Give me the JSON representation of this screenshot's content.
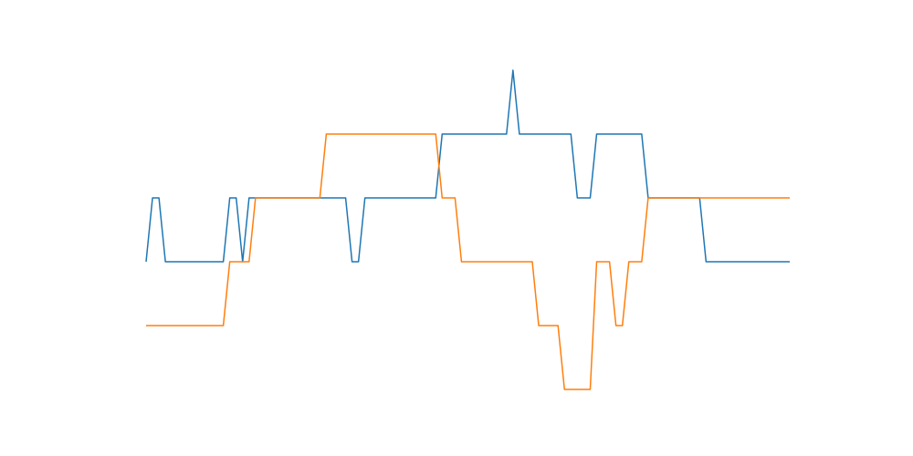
{
  "chart_data": {
    "type": "line",
    "title": "",
    "xlabel": "",
    "ylabel": "",
    "grid": false,
    "axes_visible": false,
    "xlim": [
      0,
      100
    ],
    "ylim": [
      -4.5,
      3.5
    ],
    "series": [
      {
        "color": "#1f77b4",
        "x": [
          0,
          1,
          2,
          3,
          4,
          5,
          6,
          7,
          8,
          9,
          10,
          11,
          12,
          13,
          14,
          15,
          16,
          17,
          18,
          19,
          20,
          21,
          22,
          23,
          24,
          25,
          26,
          27,
          28,
          29,
          30,
          31,
          32,
          33,
          34,
          35,
          36,
          37,
          38,
          39,
          40,
          41,
          42,
          43,
          44,
          45,
          46,
          47,
          48,
          49,
          50,
          51,
          52,
          53,
          54,
          55,
          56,
          57,
          58,
          59,
          60,
          61,
          62,
          63,
          64,
          65,
          66,
          67,
          68,
          69,
          70,
          71,
          72,
          73,
          74,
          75,
          76,
          77,
          78,
          79,
          80,
          81,
          82,
          83,
          84,
          85,
          86,
          87,
          88,
          89,
          90,
          91,
          92,
          93,
          94,
          95,
          96,
          97,
          98,
          99,
          100
        ],
        "y": [
          -1,
          0,
          0,
          -1,
          -1,
          -1,
          -1,
          -1,
          -1,
          -1,
          -1,
          -1,
          -1,
          0,
          0,
          -1,
          0,
          0,
          0,
          0,
          0,
          0,
          0,
          0,
          0,
          0,
          0,
          0,
          0,
          0,
          0,
          0,
          -1,
          -1,
          0,
          0,
          0,
          0,
          0,
          0,
          0,
          0,
          0,
          0,
          0,
          0,
          1,
          1,
          1,
          1,
          1,
          1,
          1,
          1,
          1,
          1,
          1,
          2,
          1,
          1,
          1,
          1,
          1,
          1,
          1,
          1,
          1,
          0,
          0,
          0,
          1,
          1,
          1,
          1,
          1,
          1,
          1,
          1,
          0,
          0,
          0,
          0,
          0,
          0,
          0,
          0,
          0,
          -1,
          -1,
          -1,
          -1,
          -1,
          -1,
          -1,
          -1,
          -1,
          -1,
          -1,
          -1,
          -1,
          -1
        ]
      },
      {
        "color": "#ff7f0e",
        "x": [
          0,
          1,
          2,
          3,
          4,
          5,
          6,
          7,
          8,
          9,
          10,
          11,
          12,
          13,
          14,
          15,
          16,
          17,
          18,
          19,
          20,
          21,
          22,
          23,
          24,
          25,
          26,
          27,
          28,
          29,
          30,
          31,
          32,
          33,
          34,
          35,
          36,
          37,
          38,
          39,
          40,
          41,
          42,
          43,
          44,
          45,
          46,
          47,
          48,
          49,
          50,
          51,
          52,
          53,
          54,
          55,
          56,
          57,
          58,
          59,
          60,
          61,
          62,
          63,
          64,
          65,
          66,
          67,
          68,
          69,
          70,
          71,
          72,
          73,
          74,
          75,
          76,
          77,
          78,
          79,
          80,
          81,
          82,
          83,
          84,
          85,
          86,
          87,
          88,
          89,
          90,
          91,
          92,
          93,
          94,
          95,
          96,
          97,
          98,
          99,
          100
        ],
        "y": [
          -2,
          -2,
          -2,
          -2,
          -2,
          -2,
          -2,
          -2,
          -2,
          -2,
          -2,
          -2,
          -2,
          -1,
          -1,
          -1,
          -1,
          0,
          0,
          0,
          0,
          0,
          0,
          0,
          0,
          0,
          0,
          0,
          1,
          1,
          1,
          1,
          1,
          1,
          1,
          1,
          1,
          1,
          1,
          1,
          1,
          1,
          1,
          1,
          1,
          1,
          0,
          0,
          0,
          -1,
          -1,
          -1,
          -1,
          -1,
          -1,
          -1,
          -1,
          -1,
          -1,
          -1,
          -1,
          -2,
          -2,
          -2,
          -2,
          -3,
          -3,
          -3,
          -3,
          -3,
          -1,
          -1,
          -1,
          -2,
          -2,
          -1,
          -1,
          -1,
          0,
          0,
          0,
          0,
          0,
          0,
          0,
          0,
          0,
          0,
          0,
          0,
          0,
          0,
          0,
          0,
          0,
          0,
          0,
          0,
          0,
          0,
          0
        ]
      }
    ]
  }
}
